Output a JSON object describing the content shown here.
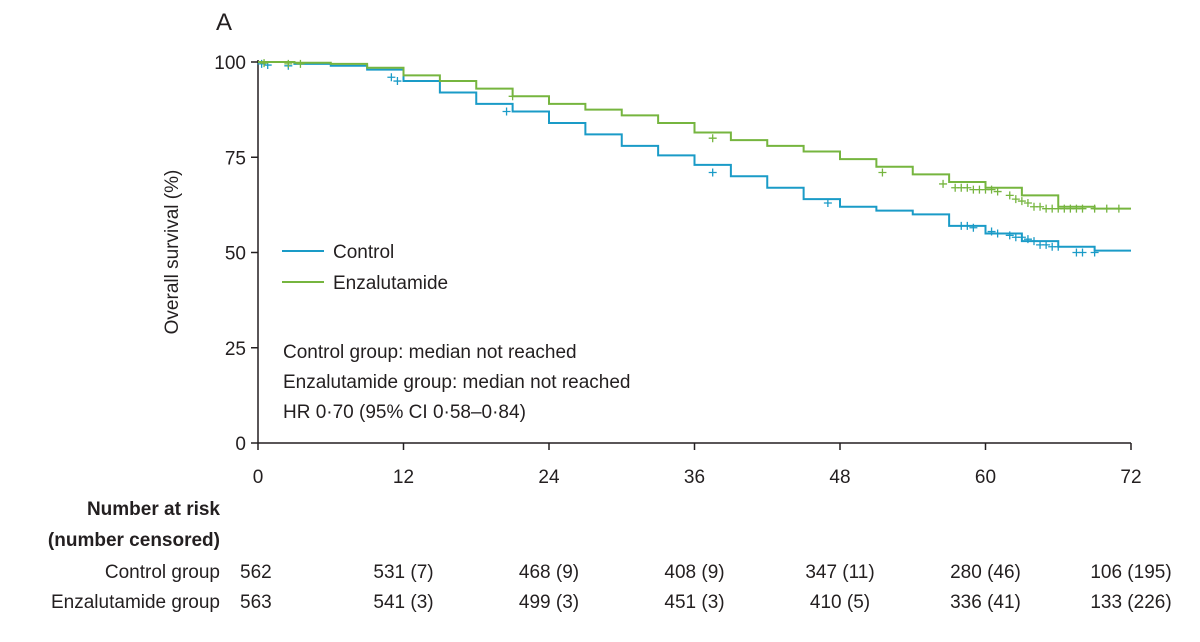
{
  "panel_label": "A",
  "chart_data": {
    "type": "line",
    "title": "",
    "xlabel": "",
    "ylabel": "Overall survival (%)",
    "xlim": [
      0,
      72
    ],
    "ylim": [
      0,
      100
    ],
    "xticks": [
      "0",
      "12",
      "24",
      "36",
      "48",
      "60",
      "72"
    ],
    "xtick_values": [
      0,
      12,
      24,
      36,
      48,
      60,
      72
    ],
    "yticks": [
      "0",
      "25",
      "50",
      "75",
      "100"
    ],
    "ytick_values": [
      0,
      25,
      50,
      75,
      100
    ],
    "grid": false,
    "legend": "left",
    "series": [
      {
        "name": "Control",
        "color": "#1a9bc7",
        "x": [
          0,
          3,
          6,
          9,
          12,
          15,
          18,
          21,
          24,
          27,
          30,
          33,
          36,
          39,
          42,
          45,
          48,
          51,
          54,
          57,
          60,
          63,
          66,
          69,
          72
        ],
        "y": [
          100,
          99.5,
          99,
          98,
          95,
          92,
          89,
          87,
          84,
          81,
          78,
          75.5,
          73,
          70,
          67,
          64,
          62,
          61,
          60,
          57,
          55,
          53,
          51.5,
          50.5,
          50.5
        ],
        "censor_x": [
          0.3,
          0.8,
          2.5,
          11,
          11.5,
          20.5,
          37.5,
          47,
          58,
          58.5,
          59,
          60.5,
          61,
          62,
          62.5,
          63,
          63.5,
          64,
          64.5,
          65,
          65.5,
          66,
          67.5,
          68,
          69
        ],
        "censor_y": [
          99.5,
          99.2,
          99,
          96,
          95,
          87,
          71,
          63,
          57,
          57,
          56.5,
          55.5,
          55,
          54.5,
          54,
          54,
          53.5,
          53,
          52,
          52,
          51.5,
          51.5,
          50,
          50,
          50
        ]
      },
      {
        "name": "Enzalutamide",
        "color": "#76b53f",
        "x": [
          0,
          3,
          6,
          9,
          12,
          15,
          18,
          21,
          24,
          27,
          30,
          33,
          36,
          39,
          42,
          45,
          48,
          51,
          54,
          57,
          60,
          63,
          66,
          69,
          72
        ],
        "y": [
          100,
          99.8,
          99.5,
          98.5,
          96.5,
          95,
          93,
          91,
          89,
          87.5,
          86,
          84,
          81.5,
          79.5,
          78,
          76.5,
          74.5,
          72.5,
          70.5,
          68.5,
          67,
          65,
          62,
          61.5,
          61.5
        ],
        "censor_x": [
          0.5,
          2.5,
          3.5,
          21,
          37.5,
          51.5,
          56.5,
          57.5,
          58,
          58.5,
          59,
          59.5,
          60,
          60.5,
          61,
          62,
          62.5,
          63,
          63.5,
          64,
          64.5,
          65,
          65.5,
          66,
          66.5,
          67,
          67.5,
          68,
          69,
          70,
          71
        ],
        "censor_y": [
          99.7,
          99.5,
          99.5,
          91,
          80,
          71,
          68,
          67,
          67,
          67,
          66.5,
          66.5,
          66.5,
          66.5,
          66,
          65,
          64,
          63.5,
          63,
          62,
          62,
          61.5,
          61.5,
          61.5,
          61.5,
          61.5,
          61.5,
          61.5,
          61.5,
          61.5,
          61.5
        ]
      }
    ],
    "annotations": [
      "Control group: median not reached",
      "Enzalutamide group: median not reached",
      "HR 0·70 (95% CI 0·58–0·84)"
    ]
  },
  "risk_table": {
    "title_line1": "Number at risk",
    "title_line2": "(number censored)",
    "rows": [
      {
        "label": "Control group",
        "cells": [
          "562",
          "531 (7)",
          "468 (9)",
          "408 (9)",
          "347 (11)",
          "280 (46)",
          "106 (195)"
        ]
      },
      {
        "label": "Enzalutamide group",
        "cells": [
          "563",
          "541 (3)",
          "499 (3)",
          "451 (3)",
          "410 (5)",
          "336 (41)",
          "133 (226)"
        ]
      }
    ]
  }
}
